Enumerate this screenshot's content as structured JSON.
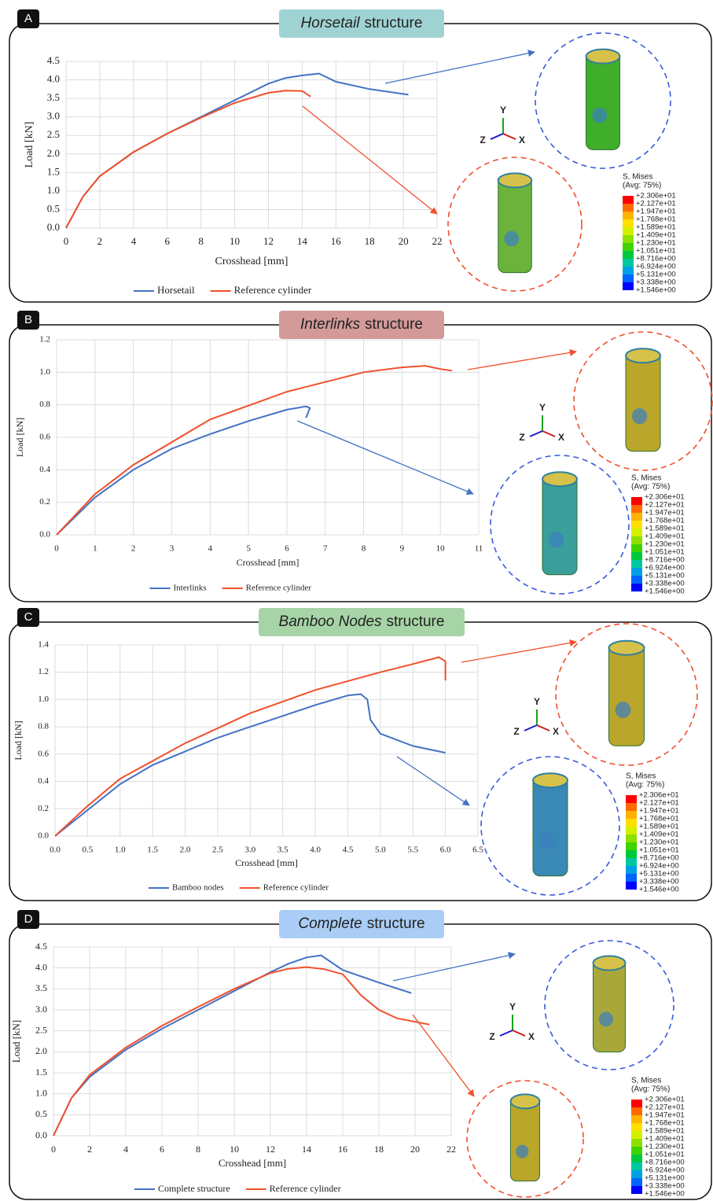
{
  "chart_data": [
    {
      "type": "line",
      "panel_label": "A",
      "title": [
        "Horsetail",
        "structure"
      ],
      "x_label": "Crosshead [mm]",
      "y_label": "Load [kN]",
      "grid": true,
      "xlim": [
        0,
        22
      ],
      "xticks": [
        0,
        2,
        4,
        6,
        8,
        10,
        12,
        14,
        16,
        18,
        20,
        22
      ],
      "ylim": [
        0,
        4.5
      ],
      "yticks": [
        {
          "value": 0,
          "label": "0.0"
        },
        {
          "value": 0.5,
          "label": "0.5"
        },
        {
          "value": 1,
          "label": "1.0"
        },
        {
          "value": 1.5,
          "label": "1.5"
        },
        {
          "value": 2,
          "label": "2.0"
        },
        {
          "value": 2.5,
          "label": "2.5"
        },
        {
          "value": 3,
          "label": "3.0"
        },
        {
          "value": 3.5,
          "label": "3.5"
        },
        {
          "value": 4,
          "label": "4.0"
        },
        {
          "value": 4.5,
          "label": "4.5"
        }
      ],
      "series": [
        {
          "name": "Horsetail",
          "color": "#4472c4",
          "x": [
            0,
            1,
            2,
            4,
            6,
            8,
            10,
            12,
            13,
            14,
            15,
            16,
            18,
            20.3
          ],
          "values": [
            0,
            0.85,
            1.4,
            2.05,
            2.55,
            3.0,
            3.45,
            3.9,
            4.05,
            4.12,
            4.17,
            3.95,
            3.75,
            3.6
          ]
        },
        {
          "name": "Reference cylinder",
          "color": "#f0502c",
          "x": [
            0,
            1,
            2,
            4,
            6,
            8,
            10,
            12,
            13,
            14,
            14.5
          ],
          "values": [
            0,
            0.85,
            1.4,
            2.05,
            2.55,
            2.98,
            3.38,
            3.65,
            3.71,
            3.7,
            3.55
          ]
        }
      ]
    },
    {
      "type": "line",
      "panel_label": "B",
      "title": [
        "Interlinks",
        "structure"
      ],
      "x_label": "Crosshead [mm]",
      "y_label": "Load [kN]",
      "grid": true,
      "xlim": [
        0,
        11
      ],
      "xticks": [
        0,
        1,
        2,
        3,
        4,
        5,
        6,
        7,
        8,
        9,
        10,
        11
      ],
      "ylim": [
        0,
        1.2
      ],
      "yticks": [
        {
          "value": 0,
          "label": "0.0"
        },
        {
          "value": 0.2,
          "label": "0.2"
        },
        {
          "value": 0.4,
          "label": "0.4"
        },
        {
          "value": 0.6,
          "label": "0.6"
        },
        {
          "value": 0.8,
          "label": "0.8"
        },
        {
          "value": 1,
          "label": "1.0"
        },
        {
          "value": 1.2,
          "label": "1.2"
        }
      ],
      "series": [
        {
          "name": "Interlinks",
          "color": "#4472c4",
          "x": [
            0,
            1,
            2,
            3,
            4,
            5,
            6,
            6.5,
            6.6,
            6.5
          ],
          "values": [
            0,
            0.23,
            0.4,
            0.53,
            0.62,
            0.7,
            0.77,
            0.79,
            0.78,
            0.72
          ]
        },
        {
          "name": "Reference cylinder",
          "color": "#f0502c",
          "x": [
            0,
            1,
            2,
            4,
            6,
            8,
            9,
            9.6,
            10,
            10.3
          ],
          "values": [
            0,
            0.25,
            0.43,
            0.71,
            0.88,
            1.0,
            1.03,
            1.04,
            1.02,
            1.01
          ]
        }
      ]
    },
    {
      "type": "line",
      "panel_label": "C",
      "title": [
        "Bamboo Nodes",
        "structure"
      ],
      "x_label": "Crosshead [mm]",
      "y_label": "Load [kN]",
      "grid": true,
      "xlim": [
        0,
        6.5
      ],
      "xticks": [
        {
          "value": 0,
          "label": "0.0"
        },
        {
          "value": 0.5,
          "label": "0.5"
        },
        {
          "value": 1,
          "label": "1.0"
        },
        {
          "value": 1.5,
          "label": "1.5"
        },
        {
          "value": 2,
          "label": "2.0"
        },
        {
          "value": 2.5,
          "label": "2.5"
        },
        {
          "value": 3,
          "label": "3.0"
        },
        {
          "value": 3.5,
          "label": "3.5"
        },
        {
          "value": 4,
          "label": "4.0"
        },
        {
          "value": 4.5,
          "label": "4.5"
        },
        {
          "value": 5,
          "label": "5.0"
        },
        {
          "value": 5.5,
          "label": "5.5"
        },
        {
          "value": 6,
          "label": "6.0"
        },
        {
          "value": 6.5,
          "label": "6.5"
        }
      ],
      "ylim": [
        0,
        1.4
      ],
      "yticks": [
        {
          "value": 0,
          "label": "0.0"
        },
        {
          "value": 0.2,
          "label": "0.2"
        },
        {
          "value": 0.4,
          "label": "0.4"
        },
        {
          "value": 0.6,
          "label": "0.6"
        },
        {
          "value": 0.8,
          "label": "0.8"
        },
        {
          "value": 1,
          "label": "1.0"
        },
        {
          "value": 1.2,
          "label": "1.2"
        },
        {
          "value": 1.4,
          "label": "1.4"
        }
      ],
      "series": [
        {
          "name": "Bamboo nodes",
          "color": "#4472c4",
          "x": [
            0,
            0.5,
            1,
            1.5,
            2,
            2.5,
            3,
            3.5,
            4,
            4.5,
            4.7,
            4.8,
            4.85,
            5,
            5.5,
            6
          ],
          "values": [
            0,
            0.19,
            0.38,
            0.52,
            0.62,
            0.72,
            0.8,
            0.88,
            0.96,
            1.03,
            1.04,
            1.0,
            0.85,
            0.75,
            0.66,
            0.61
          ]
        },
        {
          "name": "Reference cylinder",
          "color": "#f0502c",
          "x": [
            0,
            0.5,
            1,
            2,
            3,
            4,
            5,
            5.5,
            5.9,
            6.0,
            6.0
          ],
          "values": [
            0,
            0.22,
            0.42,
            0.68,
            0.9,
            1.07,
            1.2,
            1.26,
            1.31,
            1.28,
            1.14
          ]
        }
      ]
    },
    {
      "type": "line",
      "panel_label": "D",
      "title": [
        "Complete",
        "structure"
      ],
      "x_label": "Crosshead [mm]",
      "y_label": "Load [kN]",
      "grid": true,
      "xlim": [
        0,
        22
      ],
      "xticks": [
        0,
        2,
        4,
        6,
        8,
        10,
        12,
        14,
        16,
        18,
        20,
        22
      ],
      "ylim": [
        0,
        4.5
      ],
      "yticks": [
        {
          "value": 0,
          "label": "0.0"
        },
        {
          "value": 0.5,
          "label": "0.5"
        },
        {
          "value": 1,
          "label": "1.0"
        },
        {
          "value": 1.5,
          "label": "1.5"
        },
        {
          "value": 2,
          "label": "2.0"
        },
        {
          "value": 2.5,
          "label": "2.5"
        },
        {
          "value": 3,
          "label": "3.0"
        },
        {
          "value": 3.5,
          "label": "3.5"
        },
        {
          "value": 4,
          "label": "4.0"
        },
        {
          "value": 4.5,
          "label": "4.5"
        }
      ],
      "series": [
        {
          "name": "Complete structure",
          "color": "#4472c4",
          "x": [
            0,
            1,
            2,
            4,
            6,
            8,
            10,
            12,
            13,
            14,
            14.8,
            16,
            18,
            19.8
          ],
          "values": [
            0,
            0.9,
            1.4,
            2.05,
            2.55,
            3.0,
            3.45,
            3.9,
            4.1,
            4.25,
            4.3,
            3.95,
            3.65,
            3.4
          ]
        },
        {
          "name": "Reference cylinder",
          "color": "#f0502c",
          "x": [
            0,
            1,
            2,
            4,
            6,
            8,
            10,
            12,
            13,
            14,
            15,
            16,
            17,
            18,
            19,
            20.8
          ],
          "values": [
            0,
            0.9,
            1.45,
            2.1,
            2.62,
            3.07,
            3.5,
            3.88,
            3.98,
            4.02,
            3.97,
            3.85,
            3.35,
            3.0,
            2.8,
            2.65
          ]
        }
      ]
    }
  ],
  "contour_legend": {
    "title": "S, Mises",
    "subtitle": "(Avg: 75%)",
    "levels": [
      {
        "value": 23.06,
        "label": "+2.306e+01"
      },
      {
        "value": 21.27,
        "label": "+2.127e+01"
      },
      {
        "value": 19.47,
        "label": "+1.947e+01"
      },
      {
        "value": 17.68,
        "label": "+1.768e+01"
      },
      {
        "value": 15.89,
        "label": "+1.589e+01"
      },
      {
        "value": 14.09,
        "label": "+1.409e+01"
      },
      {
        "value": 12.3,
        "label": "+1.230e+01"
      },
      {
        "value": 10.51,
        "label": "+1.051e+01"
      },
      {
        "value": 8.716,
        "label": "+8.716e+00"
      },
      {
        "value": 6.924,
        "label": "+6.924e+00"
      },
      {
        "value": 5.131,
        "label": "+5.131e+00"
      },
      {
        "value": 3.338,
        "label": "+3.338e+00"
      },
      {
        "value": 1.546,
        "label": "+1.546e+00"
      }
    ],
    "colors": [
      "#ff0000",
      "#ff6a00",
      "#ffb300",
      "#ffe000",
      "#d4f000",
      "#8ee000",
      "#3ed400",
      "#00c83c",
      "#00c8a0",
      "#00a0e6",
      "#0064ff",
      "#0000ff"
    ]
  },
  "triad": {
    "y": "Y",
    "z": "Z",
    "x": "X"
  }
}
